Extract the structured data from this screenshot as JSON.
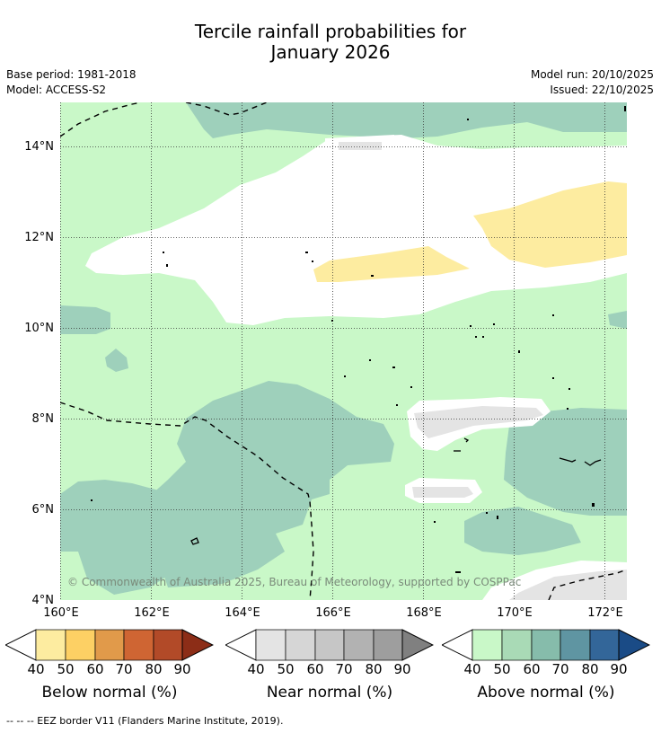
{
  "title_line1": "Tercile rainfall probabilities for",
  "title_line2": "January 2026",
  "base_period": "Base period: 1981-2018",
  "model": "Model: ACCESS-S2",
  "model_run": "Model run: 20/10/2025",
  "issued": "Issued: 22/10/2025",
  "lat_ticks": [
    "14°N",
    "12°N",
    "10°N",
    "8°N",
    "6°N",
    "4°N"
  ],
  "lon_ticks": [
    "160°E",
    "162°E",
    "164°E",
    "166°E",
    "168°E",
    "170°E",
    "172°E"
  ],
  "copyright": "© Commonwealth of Australia 2025, Bureau of Meteorology, supported by COSPPac",
  "colorbars": [
    {
      "label": "Below normal (%)",
      "ticks": [
        "40",
        "50",
        "60",
        "70",
        "80",
        "90"
      ],
      "colors": [
        "#fdeca0",
        "#fdd064",
        "#e19a4a",
        "#cf6533",
        "#b24a28",
        "#8c2d17"
      ]
    },
    {
      "label": "Near normal (%)",
      "ticks": [
        "40",
        "50",
        "60",
        "70",
        "80",
        "90"
      ],
      "colors": [
        "#e4e4e4",
        "#d6d6d6",
        "#c6c6c6",
        "#b2b2b2",
        "#9e9e9e",
        "#808080"
      ]
    },
    {
      "label": "Above normal (%)",
      "ticks": [
        "40",
        "50",
        "60",
        "70",
        "80",
        "90"
      ],
      "colors": [
        "#c9f8c8",
        "#a9dab6",
        "#86bcab",
        "#5f95a2",
        "#336699",
        "#1a4b86"
      ]
    }
  ],
  "footer": "--  --  -- EEZ border V11 (Flanders Marine Institute, 2019)."
}
